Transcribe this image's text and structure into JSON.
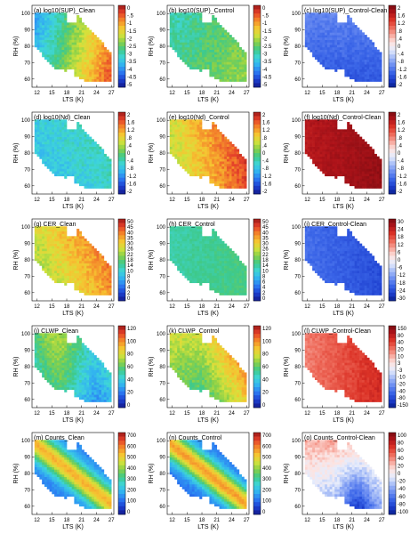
{
  "figure": {
    "xlabel": "LTS (K)",
    "ylabel": "RH (%)",
    "xticks": [
      "12",
      "15",
      "18",
      "21",
      "24",
      "27"
    ],
    "yticks": [
      "60",
      "70",
      "80",
      "90",
      "100"
    ]
  },
  "chart_data": [
    {
      "type": "heatmap",
      "title": "(a) log10(SUP)_Clean",
      "colormap": "rainbow",
      "colorbar_ticks": [
        "0",
        "-.5",
        "-1",
        "-1.5",
        "-2",
        "-2.5",
        "-3",
        "-3.5",
        "-4",
        "-4.5",
        "-5"
      ],
      "field": "sup_clean",
      "xlim": [
        11,
        27.5
      ],
      "ylim": [
        55,
        105
      ]
    },
    {
      "type": "heatmap",
      "title": "(b) log10(SUP)_Control",
      "colormap": "rainbow",
      "colorbar_ticks": [
        "0",
        "-.5",
        "-1",
        "-1.5",
        "-2",
        "-2.5",
        "-3",
        "-3.5",
        "-4",
        "-4.5",
        "-5"
      ],
      "field": "sup_control",
      "xlim": [
        11,
        27.5
      ],
      "ylim": [
        55,
        105
      ]
    },
    {
      "type": "heatmap",
      "title": "(c) log10(SUP)_Control-Clean",
      "colormap": "diverging",
      "colorbar_ticks": [
        "2",
        "1.6",
        "1.2",
        ".8",
        ".4",
        "0",
        "-.4",
        "-.8",
        "-1.2",
        "-1.6",
        "-2"
      ],
      "field": "sup_diff",
      "xlim": [
        11,
        27.5
      ],
      "ylim": [
        55,
        105
      ]
    },
    {
      "type": "heatmap",
      "title": "(d) log10(Nd)_Clean",
      "colormap": "rainbow",
      "colorbar_ticks": [
        "2",
        "1.6",
        "1.2",
        ".8",
        ".4",
        "0",
        "-.4",
        "-.8",
        "-1.2",
        "-1.6",
        "-2"
      ],
      "field": "nd_clean",
      "xlim": [
        11,
        27.5
      ],
      "ylim": [
        55,
        105
      ]
    },
    {
      "type": "heatmap",
      "title": "(e) log10(Nd)_Control",
      "colormap": "rainbow",
      "colorbar_ticks": [
        "2",
        "1.6",
        "1.2",
        ".8",
        ".4",
        "0",
        "-.4",
        "-.8",
        "-1.2",
        "-1.6",
        "-2"
      ],
      "field": "nd_control",
      "xlim": [
        11,
        27.5
      ],
      "ylim": [
        55,
        105
      ]
    },
    {
      "type": "heatmap",
      "title": "(f) log10(Nd)_Control-Clean",
      "colormap": "diverging",
      "colorbar_ticks": [
        "2",
        "1.6",
        "1.2",
        ".8",
        ".4",
        "0",
        "-.4",
        "-.8",
        "-1.2",
        "-1.6",
        "-2"
      ],
      "field": "nd_diff",
      "xlim": [
        11,
        27.5
      ],
      "ylim": [
        55,
        105
      ]
    },
    {
      "type": "heatmap",
      "title": "(g) CER_Clean",
      "colormap": "rainbow",
      "colorbar_ticks": [
        "50",
        "45",
        "40",
        "35",
        "30",
        "26",
        "22",
        "18",
        "14",
        "10",
        "8",
        "6",
        "4",
        "2",
        "0"
      ],
      "field": "cer_clean",
      "xlim": [
        11,
        27.5
      ],
      "ylim": [
        55,
        105
      ]
    },
    {
      "type": "heatmap",
      "title": "(h) CER_Control",
      "colormap": "rainbow",
      "colorbar_ticks": [
        "50",
        "45",
        "40",
        "35",
        "30",
        "26",
        "22",
        "18",
        "14",
        "10",
        "8",
        "6",
        "4",
        "2",
        "0"
      ],
      "field": "cer_control",
      "xlim": [
        11,
        27.5
      ],
      "ylim": [
        55,
        105
      ]
    },
    {
      "type": "heatmap",
      "title": "(i) CER_Control-Clean",
      "colormap": "diverging",
      "colorbar_ticks": [
        "30",
        "24",
        "18",
        "12",
        "6",
        "0",
        "-6",
        "-12",
        "-18",
        "-24",
        "-30"
      ],
      "field": "cer_diff",
      "xlim": [
        11,
        27.5
      ],
      "ylim": [
        55,
        105
      ]
    },
    {
      "type": "heatmap",
      "title": "(j) CLWP_Clean",
      "colormap": "rainbow",
      "colorbar_ticks": [
        "120",
        "100",
        "80",
        "60",
        "40",
        "20",
        "0"
      ],
      "field": "clwp_clean",
      "xlim": [
        11,
        27.5
      ],
      "ylim": [
        55,
        105
      ]
    },
    {
      "type": "heatmap",
      "title": "(k) CLWP_Control",
      "colormap": "rainbow",
      "colorbar_ticks": [
        "120",
        "100",
        "80",
        "60",
        "40",
        "20",
        "0"
      ],
      "field": "clwp_control",
      "xlim": [
        11,
        27.5
      ],
      "ylim": [
        55,
        105
      ]
    },
    {
      "type": "heatmap",
      "title": "(l) CLWP_Control-Clean",
      "colormap": "diverging",
      "colorbar_ticks": [
        "150",
        "80",
        "40",
        "20",
        "10",
        "3",
        "-3",
        "-10",
        "-20",
        "-40",
        "-80",
        "-150"
      ],
      "field": "clwp_diff",
      "xlim": [
        11,
        27.5
      ],
      "ylim": [
        55,
        105
      ]
    },
    {
      "type": "heatmap",
      "title": "(m) Counts_Clean",
      "colormap": "rainbow",
      "colorbar_ticks": [
        "700",
        "600",
        "500",
        "400",
        "300",
        "200",
        "100",
        "0"
      ],
      "field": "counts_clean",
      "xlim": [
        11,
        27.5
      ],
      "ylim": [
        55,
        105
      ]
    },
    {
      "type": "heatmap",
      "title": "(n) Counts_Control",
      "colormap": "rainbow",
      "colorbar_ticks": [
        "700",
        "600",
        "500",
        "400",
        "300",
        "200",
        "100",
        "0"
      ],
      "field": "counts_control",
      "xlim": [
        11,
        27.5
      ],
      "ylim": [
        55,
        105
      ]
    },
    {
      "type": "heatmap",
      "title": "(o) Counts_Control-Clean",
      "colormap": "diverging",
      "colorbar_ticks": [
        "100",
        "80",
        "60",
        "40",
        "20",
        "0",
        "-20",
        "-40",
        "-60",
        "-80",
        "-100"
      ],
      "field": "counts_diff",
      "xlim": [
        11,
        27.5
      ],
      "ylim": [
        55,
        105
      ]
    }
  ]
}
